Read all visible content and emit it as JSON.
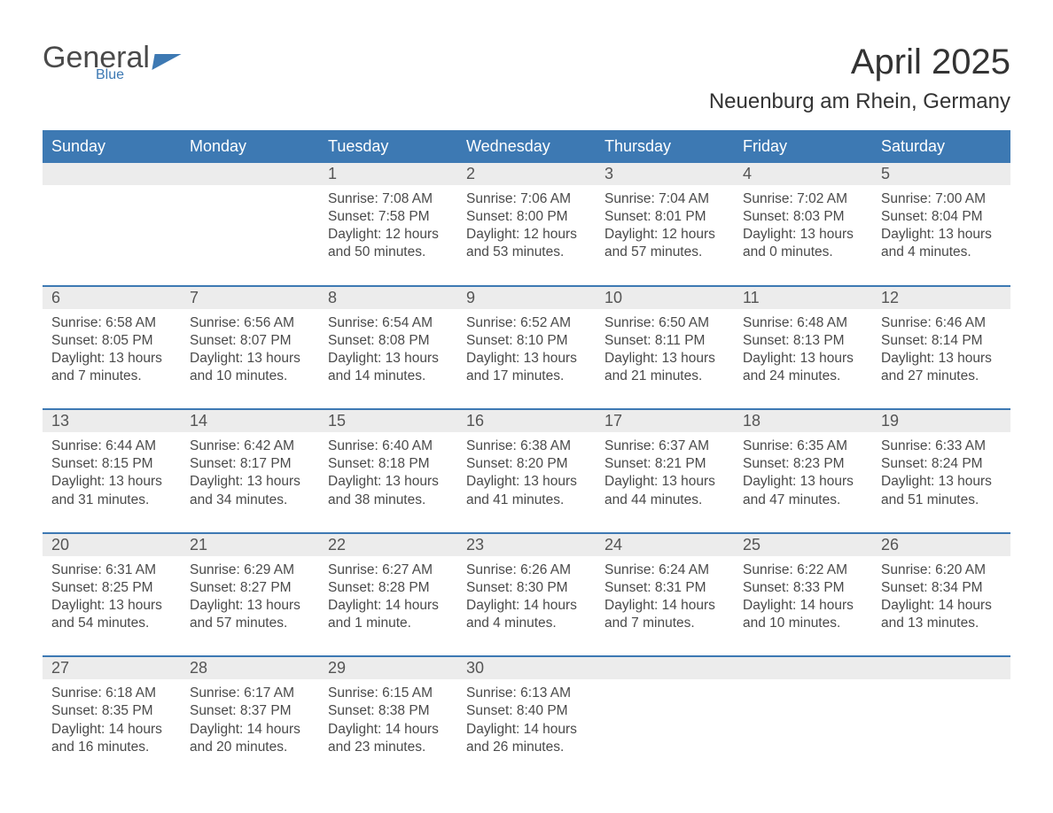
{
  "brand": {
    "word1": "General",
    "word2": "Blue"
  },
  "title": "April 2025",
  "location": "Neuenburg am Rhein, Germany",
  "colors": {
    "header_bg": "#3d79b3",
    "header_text": "#ffffff",
    "daynum_bg": "#ececec",
    "body_text": "#4a4a4a",
    "rule": "#3d79b3",
    "page_bg": "#ffffff"
  },
  "typography": {
    "title_fontsize": 40,
    "location_fontsize": 24,
    "header_fontsize": 18,
    "body_fontsize": 15.5
  },
  "layout": {
    "columns": 7,
    "rows": 5,
    "first_weekday": "Sunday"
  },
  "weekdays": [
    "Sunday",
    "Monday",
    "Tuesday",
    "Wednesday",
    "Thursday",
    "Friday",
    "Saturday"
  ],
  "weeks": [
    {
      "nums": [
        "",
        "",
        "1",
        "2",
        "3",
        "4",
        "5"
      ],
      "cells": [
        null,
        null,
        {
          "sunrise": "Sunrise: 7:08 AM",
          "sunset": "Sunset: 7:58 PM",
          "day1": "Daylight: 12 hours",
          "day2": "and 50 minutes."
        },
        {
          "sunrise": "Sunrise: 7:06 AM",
          "sunset": "Sunset: 8:00 PM",
          "day1": "Daylight: 12 hours",
          "day2": "and 53 minutes."
        },
        {
          "sunrise": "Sunrise: 7:04 AM",
          "sunset": "Sunset: 8:01 PM",
          "day1": "Daylight: 12 hours",
          "day2": "and 57 minutes."
        },
        {
          "sunrise": "Sunrise: 7:02 AM",
          "sunset": "Sunset: 8:03 PM",
          "day1": "Daylight: 13 hours",
          "day2": "and 0 minutes."
        },
        {
          "sunrise": "Sunrise: 7:00 AM",
          "sunset": "Sunset: 8:04 PM",
          "day1": "Daylight: 13 hours",
          "day2": "and 4 minutes."
        }
      ]
    },
    {
      "nums": [
        "6",
        "7",
        "8",
        "9",
        "10",
        "11",
        "12"
      ],
      "cells": [
        {
          "sunrise": "Sunrise: 6:58 AM",
          "sunset": "Sunset: 8:05 PM",
          "day1": "Daylight: 13 hours",
          "day2": "and 7 minutes."
        },
        {
          "sunrise": "Sunrise: 6:56 AM",
          "sunset": "Sunset: 8:07 PM",
          "day1": "Daylight: 13 hours",
          "day2": "and 10 minutes."
        },
        {
          "sunrise": "Sunrise: 6:54 AM",
          "sunset": "Sunset: 8:08 PM",
          "day1": "Daylight: 13 hours",
          "day2": "and 14 minutes."
        },
        {
          "sunrise": "Sunrise: 6:52 AM",
          "sunset": "Sunset: 8:10 PM",
          "day1": "Daylight: 13 hours",
          "day2": "and 17 minutes."
        },
        {
          "sunrise": "Sunrise: 6:50 AM",
          "sunset": "Sunset: 8:11 PM",
          "day1": "Daylight: 13 hours",
          "day2": "and 21 minutes."
        },
        {
          "sunrise": "Sunrise: 6:48 AM",
          "sunset": "Sunset: 8:13 PM",
          "day1": "Daylight: 13 hours",
          "day2": "and 24 minutes."
        },
        {
          "sunrise": "Sunrise: 6:46 AM",
          "sunset": "Sunset: 8:14 PM",
          "day1": "Daylight: 13 hours",
          "day2": "and 27 minutes."
        }
      ]
    },
    {
      "nums": [
        "13",
        "14",
        "15",
        "16",
        "17",
        "18",
        "19"
      ],
      "cells": [
        {
          "sunrise": "Sunrise: 6:44 AM",
          "sunset": "Sunset: 8:15 PM",
          "day1": "Daylight: 13 hours",
          "day2": "and 31 minutes."
        },
        {
          "sunrise": "Sunrise: 6:42 AM",
          "sunset": "Sunset: 8:17 PM",
          "day1": "Daylight: 13 hours",
          "day2": "and 34 minutes."
        },
        {
          "sunrise": "Sunrise: 6:40 AM",
          "sunset": "Sunset: 8:18 PM",
          "day1": "Daylight: 13 hours",
          "day2": "and 38 minutes."
        },
        {
          "sunrise": "Sunrise: 6:38 AM",
          "sunset": "Sunset: 8:20 PM",
          "day1": "Daylight: 13 hours",
          "day2": "and 41 minutes."
        },
        {
          "sunrise": "Sunrise: 6:37 AM",
          "sunset": "Sunset: 8:21 PM",
          "day1": "Daylight: 13 hours",
          "day2": "and 44 minutes."
        },
        {
          "sunrise": "Sunrise: 6:35 AM",
          "sunset": "Sunset: 8:23 PM",
          "day1": "Daylight: 13 hours",
          "day2": "and 47 minutes."
        },
        {
          "sunrise": "Sunrise: 6:33 AM",
          "sunset": "Sunset: 8:24 PM",
          "day1": "Daylight: 13 hours",
          "day2": "and 51 minutes."
        }
      ]
    },
    {
      "nums": [
        "20",
        "21",
        "22",
        "23",
        "24",
        "25",
        "26"
      ],
      "cells": [
        {
          "sunrise": "Sunrise: 6:31 AM",
          "sunset": "Sunset: 8:25 PM",
          "day1": "Daylight: 13 hours",
          "day2": "and 54 minutes."
        },
        {
          "sunrise": "Sunrise: 6:29 AM",
          "sunset": "Sunset: 8:27 PM",
          "day1": "Daylight: 13 hours",
          "day2": "and 57 minutes."
        },
        {
          "sunrise": "Sunrise: 6:27 AM",
          "sunset": "Sunset: 8:28 PM",
          "day1": "Daylight: 14 hours",
          "day2": "and 1 minute."
        },
        {
          "sunrise": "Sunrise: 6:26 AM",
          "sunset": "Sunset: 8:30 PM",
          "day1": "Daylight: 14 hours",
          "day2": "and 4 minutes."
        },
        {
          "sunrise": "Sunrise: 6:24 AM",
          "sunset": "Sunset: 8:31 PM",
          "day1": "Daylight: 14 hours",
          "day2": "and 7 minutes."
        },
        {
          "sunrise": "Sunrise: 6:22 AM",
          "sunset": "Sunset: 8:33 PM",
          "day1": "Daylight: 14 hours",
          "day2": "and 10 minutes."
        },
        {
          "sunrise": "Sunrise: 6:20 AM",
          "sunset": "Sunset: 8:34 PM",
          "day1": "Daylight: 14 hours",
          "day2": "and 13 minutes."
        }
      ]
    },
    {
      "nums": [
        "27",
        "28",
        "29",
        "30",
        "",
        "",
        ""
      ],
      "cells": [
        {
          "sunrise": "Sunrise: 6:18 AM",
          "sunset": "Sunset: 8:35 PM",
          "day1": "Daylight: 14 hours",
          "day2": "and 16 minutes."
        },
        {
          "sunrise": "Sunrise: 6:17 AM",
          "sunset": "Sunset: 8:37 PM",
          "day1": "Daylight: 14 hours",
          "day2": "and 20 minutes."
        },
        {
          "sunrise": "Sunrise: 6:15 AM",
          "sunset": "Sunset: 8:38 PM",
          "day1": "Daylight: 14 hours",
          "day2": "and 23 minutes."
        },
        {
          "sunrise": "Sunrise: 6:13 AM",
          "sunset": "Sunset: 8:40 PM",
          "day1": "Daylight: 14 hours",
          "day2": "and 26 minutes."
        },
        null,
        null,
        null
      ]
    }
  ]
}
